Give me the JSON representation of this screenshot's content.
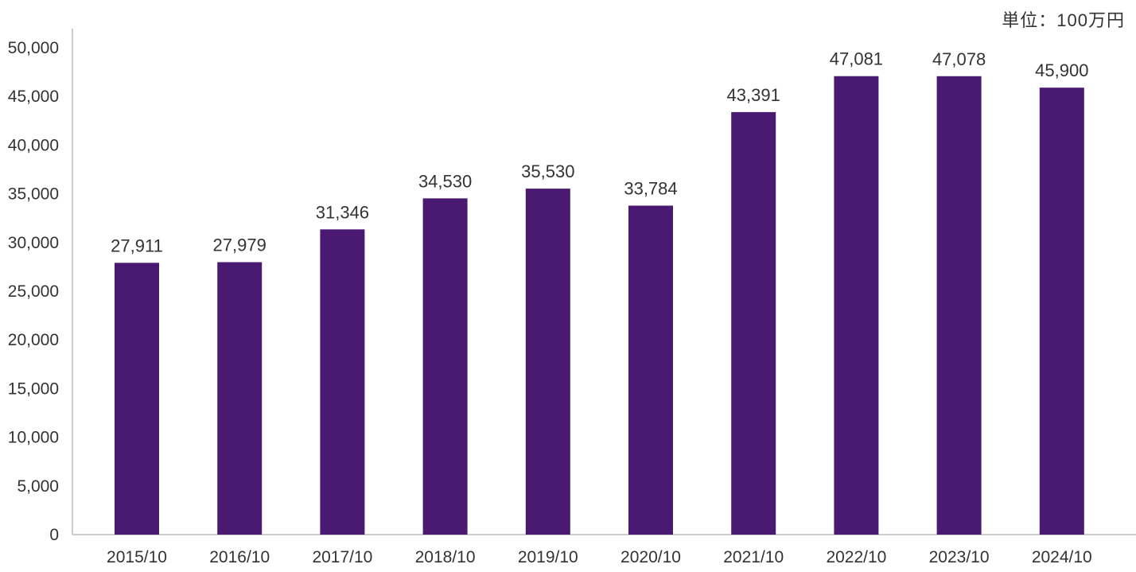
{
  "chart_data": {
    "type": "bar",
    "unit_label": "単位：100万円",
    "categories": [
      "2015/10",
      "2016/10",
      "2017/10",
      "2018/10",
      "2019/10",
      "2020/10",
      "2021/10",
      "2022/10",
      "2023/10",
      "2024/10"
    ],
    "values": [
      27911,
      27979,
      31346,
      34530,
      35530,
      33784,
      43391,
      47081,
      47078,
      45900
    ],
    "value_labels": [
      "27,911",
      "27,979",
      "31,346",
      "34,530",
      "35,530",
      "33,784",
      "43,391",
      "47,081",
      "47,078",
      "45,900"
    ],
    "y_ticks": [
      "0",
      "5,000",
      "10,000",
      "15,000",
      "20,000",
      "25,000",
      "30,000",
      "35,000",
      "40,000",
      "45,000",
      "50,000"
    ],
    "ylim": [
      0,
      50000
    ],
    "grid": false,
    "bar_color": "#4a1a73",
    "axis_color": "#bbbbbb"
  }
}
